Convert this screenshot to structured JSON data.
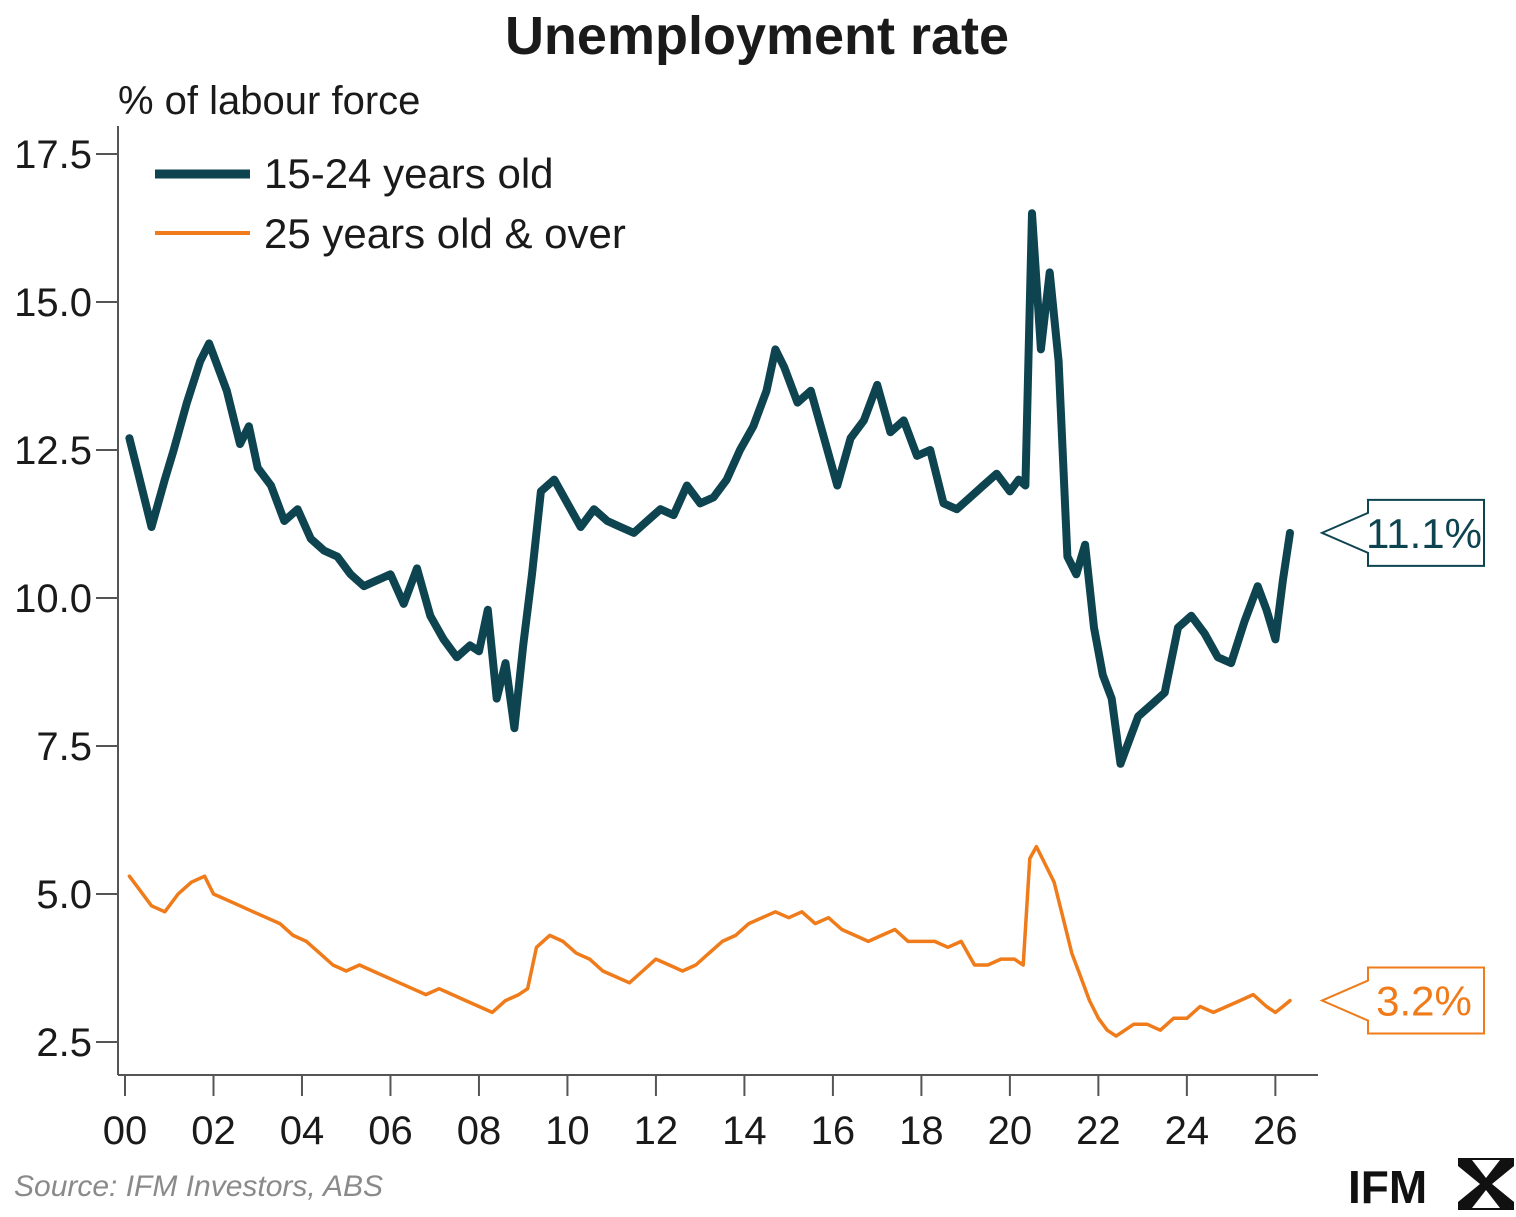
{
  "title": "Unemployment rate",
  "ylabel": "% of labour force",
  "source": "Source: IFM Investors, ABS",
  "logo": "IFM",
  "colors": {
    "youth": "#0d4450",
    "adult": "#ef7b1a",
    "axis": "#555555",
    "text": "#1a1a1a"
  },
  "chart_data": {
    "type": "line",
    "title": "Unemployment rate",
    "ylabel": "% of labour force",
    "xlabel": "",
    "ylim": [
      2.0,
      18.0
    ],
    "yticks": [
      "2.5",
      "5.0",
      "7.5",
      "10.0",
      "12.5",
      "15.0",
      "17.5"
    ],
    "xlim": [
      2000,
      2026.67
    ],
    "xticks": [
      "00",
      "02",
      "04",
      "06",
      "08",
      "10",
      "12",
      "14",
      "16",
      "18",
      "20",
      "22",
      "24",
      "26"
    ],
    "grid": false,
    "legend_position": "top-left",
    "series": [
      {
        "name": "15-24 years old",
        "color": "#0d4450",
        "end_label": "11.1%",
        "x": [
          2000.1,
          2000.3,
          2000.6,
          2000.9,
          2001.1,
          2001.4,
          2001.7,
          2001.9,
          2002.3,
          2002.6,
          2002.8,
          2003.0,
          2003.3,
          2003.6,
          2003.9,
          2004.2,
          2004.5,
          2004.8,
          2005.1,
          2005.4,
          2005.7,
          2006.0,
          2006.3,
          2006.6,
          2006.9,
          2007.2,
          2007.5,
          2007.8,
          2008.0,
          2008.2,
          2008.4,
          2008.6,
          2008.8,
          2009.0,
          2009.2,
          2009.4,
          2009.7,
          2010.0,
          2010.3,
          2010.6,
          2010.9,
          2011.2,
          2011.5,
          2011.8,
          2012.1,
          2012.4,
          2012.7,
          2013.0,
          2013.3,
          2013.6,
          2013.9,
          2014.2,
          2014.5,
          2014.7,
          2014.9,
          2015.2,
          2015.5,
          2015.8,
          2016.1,
          2016.4,
          2016.7,
          2017.0,
          2017.3,
          2017.6,
          2017.9,
          2018.2,
          2018.5,
          2018.8,
          2019.1,
          2019.4,
          2019.7,
          2020.0,
          2020.2,
          2020.35,
          2020.5,
          2020.7,
          2020.9,
          2021.1,
          2021.3,
          2021.5,
          2021.7,
          2021.9,
          2022.1,
          2022.3,
          2022.5,
          2022.7,
          2022.9,
          2023.2,
          2023.5,
          2023.8,
          2024.1,
          2024.4,
          2024.7,
          2025.0,
          2025.3,
          2025.6,
          2025.8,
          2026.0,
          2026.17,
          2026.33
        ],
        "values": [
          12.7,
          12.1,
          11.2,
          12.0,
          12.5,
          13.3,
          14.0,
          14.3,
          13.5,
          12.6,
          12.9,
          12.2,
          11.9,
          11.3,
          11.5,
          11.0,
          10.8,
          10.7,
          10.4,
          10.2,
          10.3,
          10.4,
          9.9,
          10.5,
          9.7,
          9.3,
          9.0,
          9.2,
          9.1,
          9.8,
          8.3,
          8.9,
          7.8,
          9.2,
          10.4,
          11.8,
          12.0,
          11.6,
          11.2,
          11.5,
          11.3,
          11.2,
          11.1,
          11.3,
          11.5,
          11.4,
          11.9,
          11.6,
          11.7,
          12.0,
          12.5,
          12.9,
          13.5,
          14.2,
          13.9,
          13.3,
          13.5,
          12.7,
          11.9,
          12.7,
          13.0,
          13.6,
          12.8,
          13.0,
          12.4,
          12.5,
          11.6,
          11.5,
          11.7,
          11.9,
          12.1,
          11.8,
          12.0,
          11.9,
          16.5,
          14.2,
          15.5,
          14.0,
          10.7,
          10.4,
          10.9,
          9.5,
          8.7,
          8.3,
          7.2,
          7.6,
          8.0,
          8.2,
          8.4,
          9.5,
          9.7,
          9.4,
          9.0,
          8.9,
          9.6,
          10.2,
          9.8,
          9.3,
          10.3,
          11.1
        ]
      },
      {
        "name": "25 years old & over",
        "color": "#ef7b1a",
        "end_label": "3.2%",
        "x": [
          2000.1,
          2000.3,
          2000.6,
          2000.9,
          2001.2,
          2001.5,
          2001.8,
          2002.0,
          2002.3,
          2002.6,
          2002.9,
          2003.2,
          2003.5,
          2003.8,
          2004.1,
          2004.4,
          2004.7,
          2005.0,
          2005.3,
          2005.6,
          2005.9,
          2006.2,
          2006.5,
          2006.8,
          2007.1,
          2007.4,
          2007.7,
          2008.0,
          2008.3,
          2008.6,
          2008.9,
          2009.1,
          2009.3,
          2009.6,
          2009.9,
          2010.2,
          2010.5,
          2010.8,
          2011.1,
          2011.4,
          2011.7,
          2012.0,
          2012.3,
          2012.6,
          2012.9,
          2013.2,
          2013.5,
          2013.8,
          2014.1,
          2014.4,
          2014.7,
          2015.0,
          2015.3,
          2015.6,
          2015.9,
          2016.2,
          2016.5,
          2016.8,
          2017.1,
          2017.4,
          2017.7,
          2018.0,
          2018.3,
          2018.6,
          2018.9,
          2019.2,
          2019.5,
          2019.8,
          2020.1,
          2020.3,
          2020.45,
          2020.6,
          2020.8,
          2021.0,
          2021.2,
          2021.4,
          2021.6,
          2021.8,
          2022.0,
          2022.2,
          2022.4,
          2022.6,
          2022.8,
          2023.1,
          2023.4,
          2023.7,
          2024.0,
          2024.3,
          2024.6,
          2024.9,
          2025.2,
          2025.5,
          2025.8,
          2026.0,
          2026.17,
          2026.33
        ],
        "values": [
          5.3,
          5.1,
          4.8,
          4.7,
          5.0,
          5.2,
          5.3,
          5.0,
          4.9,
          4.8,
          4.7,
          4.6,
          4.5,
          4.3,
          4.2,
          4.0,
          3.8,
          3.7,
          3.8,
          3.7,
          3.6,
          3.5,
          3.4,
          3.3,
          3.4,
          3.3,
          3.2,
          3.1,
          3.0,
          3.2,
          3.3,
          3.4,
          4.1,
          4.3,
          4.2,
          4.0,
          3.9,
          3.7,
          3.6,
          3.5,
          3.7,
          3.9,
          3.8,
          3.7,
          3.8,
          4.0,
          4.2,
          4.3,
          4.5,
          4.6,
          4.7,
          4.6,
          4.7,
          4.5,
          4.6,
          4.4,
          4.3,
          4.2,
          4.3,
          4.4,
          4.2,
          4.2,
          4.2,
          4.1,
          4.2,
          3.8,
          3.8,
          3.9,
          3.9,
          3.8,
          5.6,
          5.8,
          5.5,
          5.2,
          4.6,
          4.0,
          3.6,
          3.2,
          2.9,
          2.7,
          2.6,
          2.7,
          2.8,
          2.8,
          2.7,
          2.9,
          2.9,
          3.1,
          3.0,
          3.1,
          3.2,
          3.3,
          3.1,
          3.0,
          3.1,
          3.2
        ]
      }
    ]
  }
}
